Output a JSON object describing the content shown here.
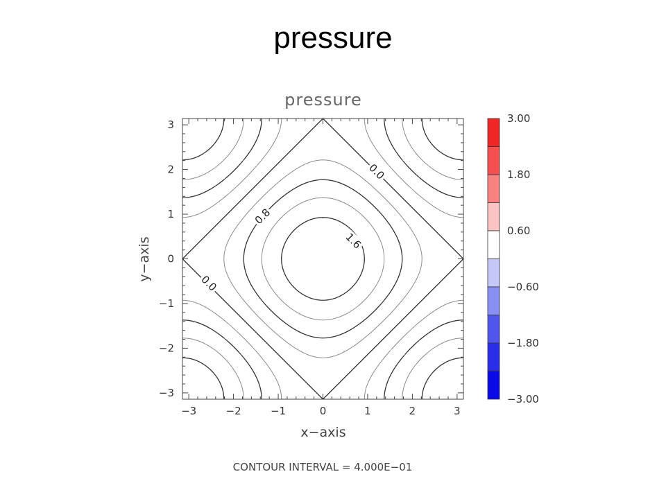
{
  "slide": {
    "title": "pressure"
  },
  "chart_data": {
    "type": "contour",
    "title": "pressure",
    "xlabel": "x−axis",
    "ylabel": "y−axis",
    "xlim": [
      -3.14159,
      3.14159
    ],
    "ylim": [
      -3.14159,
      3.14159
    ],
    "xticks": [
      -3,
      -2,
      -1,
      0,
      1,
      2,
      3
    ],
    "yticks": [
      -3,
      -2,
      -1,
      0,
      1,
      2,
      3
    ],
    "xtick_labels": [
      "−3",
      "−2",
      "−1",
      "0",
      "1",
      "2",
      "3"
    ],
    "ytick_labels": [
      "−3",
      "−2",
      "−1",
      "0",
      "1",
      "2",
      "3"
    ],
    "contour_levels": [
      -1.6,
      -1.2,
      -0.8,
      -0.4,
      0.0,
      0.4,
      0.8,
      1.2,
      1.6
    ],
    "contour_labels": [
      {
        "text": "0.0",
        "x": 1.2,
        "y": 1.95,
        "angle": 45
      },
      {
        "text": "0.0",
        "x": -2.55,
        "y": -0.55,
        "angle": 45
      },
      {
        "text": "0.8",
        "x": -1.35,
        "y": 0.95,
        "angle": -45
      },
      {
        "text": "1.6",
        "x": 0.68,
        "y": 0.4,
        "angle": 45
      }
    ],
    "colorbar": {
      "range": [
        -3.0,
        3.0
      ],
      "tick_values": [
        3.0,
        1.8,
        0.6,
        -0.6,
        -1.8,
        -3.0
      ],
      "tick_labels": [
        "3.00",
        "1.80",
        "0.60",
        "−0.60",
        "−1.80",
        "−3.00"
      ],
      "colors": [
        "#f02525",
        "#f45050",
        "#f88282",
        "#fbc4c4",
        "#ffffff",
        "#c4c8f8",
        "#8a8ff2",
        "#5055ec",
        "#2a2ee8",
        "#0a0ae6"
      ]
    },
    "footer": "CONTOUR INTERVAL = 4.000E−01"
  }
}
